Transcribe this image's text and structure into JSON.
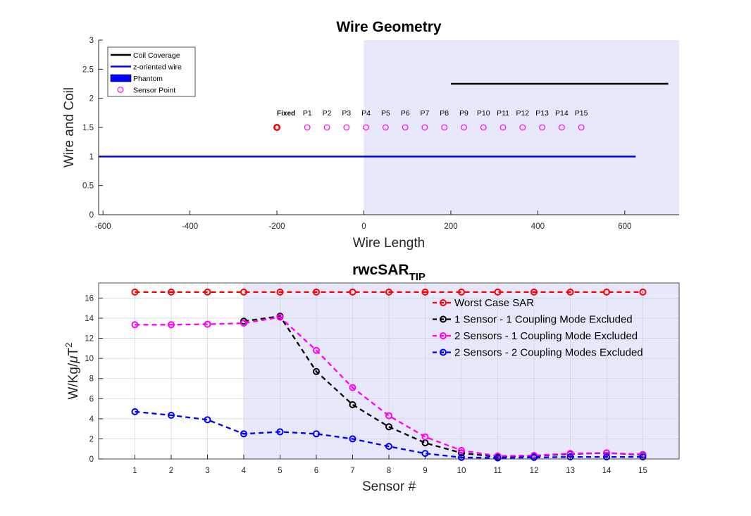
{
  "chart_data": [
    {
      "type": "line",
      "title": "Wire Geometry",
      "xlabel": "Wire Length",
      "ylabel": "Wire and Coil",
      "xlim": [
        -610,
        725
      ],
      "ylim": [
        0,
        3
      ],
      "xticks": [
        -600,
        -400,
        -200,
        0,
        200,
        400,
        600
      ],
      "yticks": [
        0,
        0.5,
        1,
        1.5,
        2,
        2.5,
        3
      ],
      "grid": false,
      "legend_position": "top-left",
      "phantom": {
        "x": [
          0,
          725
        ],
        "y": [
          0,
          3
        ],
        "color": "#e8e8fb"
      },
      "series": [
        {
          "name": "Coil Coverage",
          "kind": "line",
          "color": "#000000",
          "x": [
            200,
            700
          ],
          "y": [
            2.25,
            2.25
          ]
        },
        {
          "name": "z-oriented wire",
          "kind": "line",
          "color": "#0000ff",
          "x": [
            -610,
            625
          ],
          "y": [
            1,
            1
          ]
        },
        {
          "name": "Phantom",
          "kind": "patch",
          "color": "#0000ff"
        },
        {
          "name": "Sensor Point",
          "kind": "points",
          "color": "#ff00ff",
          "fixed": {
            "label": "Fixed",
            "x": -200,
            "y": 1.5,
            "color": "#ff0000"
          },
          "x": [
            -130,
            -85,
            -40,
            5,
            50,
            95,
            140,
            185,
            230,
            275,
            320,
            365,
            410,
            455,
            500
          ],
          "y": [
            1.5,
            1.5,
            1.5,
            1.5,
            1.5,
            1.5,
            1.5,
            1.5,
            1.5,
            1.5,
            1.5,
            1.5,
            1.5,
            1.5,
            1.5
          ],
          "labels": [
            "P1",
            "P2",
            "P3",
            "P4",
            "P5",
            "P6",
            "P7",
            "P8",
            "P9",
            "P10",
            "P11",
            "P12",
            "P13",
            "P14",
            "P15"
          ]
        }
      ]
    },
    {
      "type": "line",
      "title_main": "rwcSAR",
      "title_sub": "TIP",
      "xlabel": "Sensor #",
      "ylabel_main": "W/Kg/",
      "ylabel_mu": "μ",
      "ylabel_unit": "T",
      "ylabel_exp": "2",
      "xlim": [
        0,
        16
      ],
      "ylim": [
        0,
        17.5
      ],
      "xticks": [
        1,
        2,
        3,
        4,
        5,
        6,
        7,
        8,
        9,
        10,
        11,
        12,
        13,
        14,
        15
      ],
      "yticks": [
        0,
        2,
        4,
        6,
        8,
        10,
        12,
        14,
        16
      ],
      "grid": true,
      "legend_position": "top-right",
      "shade": {
        "x": [
          4,
          16
        ],
        "color": "#e8e8fb"
      },
      "categories": [
        1,
        2,
        3,
        4,
        5,
        6,
        7,
        8,
        9,
        10,
        11,
        12,
        13,
        14,
        15
      ],
      "series": [
        {
          "name": "Worst Case SAR",
          "color": "#ff0000",
          "values": [
            16.6,
            16.6,
            16.6,
            16.6,
            16.6,
            16.6,
            16.6,
            16.6,
            16.6,
            16.6,
            16.6,
            16.6,
            16.6,
            16.6,
            16.6
          ]
        },
        {
          "name": "1 Sensor - 1 Coupling Mode Excluded",
          "color": "#000000",
          "values": [
            null,
            null,
            null,
            13.7,
            14.2,
            8.7,
            5.4,
            3.2,
            1.6,
            0.6,
            0.2,
            0.3,
            0.5,
            0.6,
            0.4
          ]
        },
        {
          "name": "2 Sensors - 1 Coupling Mode Excluded",
          "color": "#ff00ff",
          "values": [
            13.35,
            13.35,
            13.4,
            13.5,
            14.1,
            10.8,
            7.1,
            4.3,
            2.2,
            0.85,
            0.3,
            0.35,
            0.55,
            0.6,
            0.45
          ]
        },
        {
          "name": "2 Sensors - 2 Coupling Modes Excluded",
          "color": "#0000ff",
          "values": [
            4.7,
            4.35,
            3.9,
            2.5,
            2.7,
            2.5,
            2.0,
            1.25,
            0.55,
            0.15,
            0.1,
            0.15,
            0.2,
            0.2,
            0.2
          ]
        }
      ]
    }
  ]
}
